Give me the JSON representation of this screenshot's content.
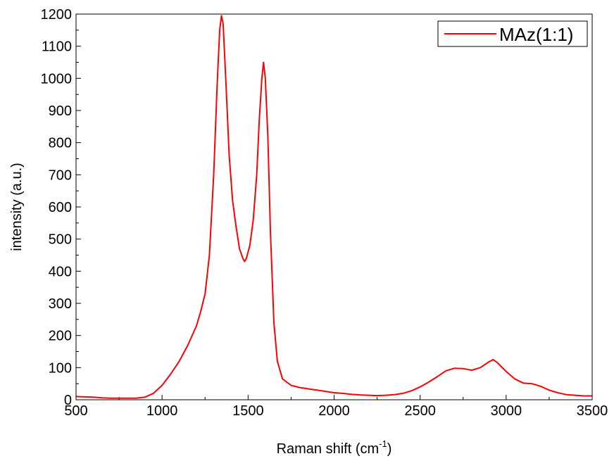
{
  "chart_data": {
    "type": "line",
    "xlabel": "Raman shift (cm",
    "xlabel_sup": "-1",
    "xlabel_close": ")",
    "ylabel": "intensity (a.u.)",
    "xlim": [
      500,
      3500
    ],
    "ylim": [
      0,
      1200
    ],
    "x_ticks": [
      "500",
      "1000",
      "1500",
      "2000",
      "2500",
      "3000",
      "3500"
    ],
    "y_ticks": [
      "0",
      "100",
      "200",
      "300",
      "400",
      "500",
      "600",
      "700",
      "800",
      "900",
      "1000",
      "1100",
      "1200"
    ],
    "grid": false,
    "legend_position": "top-right",
    "series": [
      {
        "name": "MAz(1:1)",
        "color": "#ff0000",
        "x": [
          500,
          550,
          600,
          650,
          700,
          750,
          800,
          850,
          900,
          950,
          1000,
          1050,
          1100,
          1150,
          1200,
          1225,
          1250,
          1275,
          1300,
          1320,
          1335,
          1345,
          1355,
          1370,
          1390,
          1410,
          1430,
          1450,
          1470,
          1480,
          1490,
          1510,
          1530,
          1550,
          1565,
          1580,
          1590,
          1600,
          1615,
          1630,
          1650,
          1670,
          1700,
          1750,
          1800,
          1850,
          1900,
          1950,
          2000,
          2050,
          2100,
          2150,
          2200,
          2250,
          2300,
          2350,
          2400,
          2450,
          2500,
          2550,
          2600,
          2650,
          2700,
          2750,
          2800,
          2850,
          2900,
          2925,
          2950,
          3000,
          3050,
          3100,
          3150,
          3200,
          3250,
          3300,
          3350,
          3400,
          3450,
          3500
        ],
        "y": [
          10,
          9,
          8,
          6,
          5,
          5,
          5,
          5,
          8,
          20,
          45,
          80,
          120,
          170,
          230,
          275,
          330,
          450,
          700,
          980,
          1150,
          1195,
          1170,
          1000,
          760,
          620,
          540,
          470,
          440,
          430,
          440,
          480,
          560,
          700,
          870,
          1000,
          1050,
          1000,
          820,
          520,
          240,
          120,
          65,
          45,
          38,
          34,
          30,
          26,
          22,
          20,
          17,
          15,
          14,
          13,
          14,
          16,
          20,
          28,
          40,
          55,
          72,
          90,
          98,
          97,
          92,
          100,
          118,
          125,
          115,
          88,
          65,
          52,
          50,
          42,
          30,
          22,
          16,
          14,
          12,
          12
        ]
      }
    ]
  }
}
